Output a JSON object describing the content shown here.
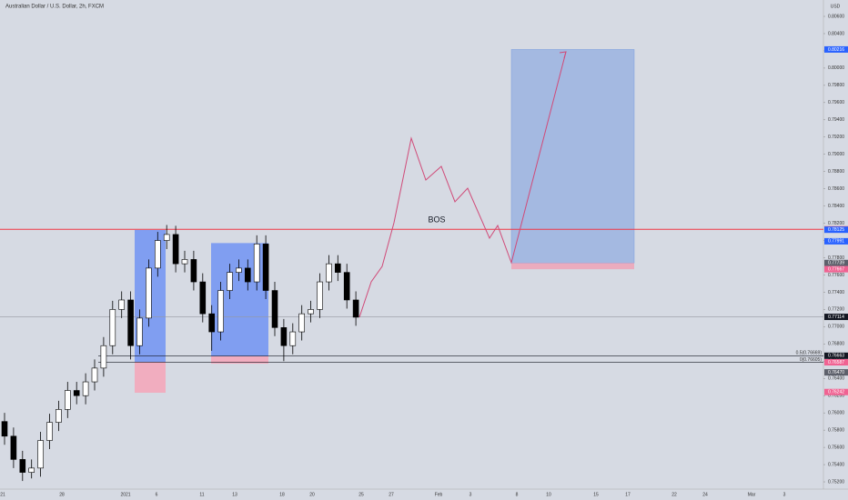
{
  "chart_data": {
    "type": "candlestick",
    "title": "Australian Dollar / U.S. Dollar, 2h, FXCM",
    "axis_unit": "USD",
    "open": [
      0.759,
      0.7573,
      0.7546,
      0.7531,
      0.7536,
      0.7568,
      0.7589,
      0.7604,
      0.7626,
      0.762,
      0.7636,
      0.7652,
      0.7678,
      0.772,
      0.7731,
      0.7678,
      0.771,
      0.7768,
      0.78,
      0.7807,
      0.7773,
      0.7778,
      0.7752,
      0.7715,
      0.7694,
      0.7742,
      0.7763,
      0.7768,
      0.7752,
      0.7796,
      0.7742,
      0.7699,
      0.7678,
      0.7694,
      0.7715,
      0.772,
      0.7752,
      0.7773,
      0.7763,
      0.7731
    ],
    "high": [
      0.76,
      0.7583,
      0.7556,
      0.7546,
      0.7578,
      0.7599,
      0.7614,
      0.7636,
      0.7636,
      0.7646,
      0.7662,
      0.7688,
      0.773,
      0.7741,
      0.7741,
      0.772,
      0.7778,
      0.781,
      0.7818,
      0.7817,
      0.7788,
      0.7788,
      0.7762,
      0.7725,
      0.7752,
      0.7773,
      0.7778,
      0.7778,
      0.7806,
      0.7806,
      0.7752,
      0.7709,
      0.7704,
      0.7725,
      0.773,
      0.7762,
      0.7783,
      0.7783,
      0.7773,
      0.7741
    ],
    "low": [
      0.7563,
      0.7536,
      0.7521,
      0.7524,
      0.7526,
      0.7558,
      0.7579,
      0.7594,
      0.761,
      0.761,
      0.7626,
      0.7642,
      0.7668,
      0.771,
      0.7662,
      0.7668,
      0.77,
      0.7758,
      0.779,
      0.7763,
      0.7763,
      0.7742,
      0.7705,
      0.7672,
      0.7684,
      0.7732,
      0.7753,
      0.7742,
      0.7742,
      0.7732,
      0.7689,
      0.766,
      0.7668,
      0.7684,
      0.7705,
      0.771,
      0.7742,
      0.7753,
      0.7721,
      0.7701
    ],
    "close": [
      0.7573,
      0.7546,
      0.7531,
      0.7536,
      0.7568,
      0.7589,
      0.7604,
      0.7626,
      0.762,
      0.7636,
      0.7652,
      0.7678,
      0.772,
      0.7731,
      0.7678,
      0.771,
      0.7768,
      0.78,
      0.7807,
      0.7773,
      0.7778,
      0.7752,
      0.7715,
      0.7694,
      0.7742,
      0.7763,
      0.7768,
      0.7752,
      0.7796,
      0.7742,
      0.7699,
      0.7678,
      0.7694,
      0.7715,
      0.772,
      0.7752,
      0.7773,
      0.7763,
      0.7731,
      0.7711
    ],
    "ylim": [
      0.75116,
      0.8079
    ],
    "yticks": [
      {
        "value": 0.752,
        "label": "0.75200"
      },
      {
        "value": 0.754,
        "label": "0.75400"
      },
      {
        "value": 0.756,
        "label": "0.75600"
      },
      {
        "value": 0.758,
        "label": "0.75800"
      },
      {
        "value": 0.76,
        "label": "0.76000"
      },
      {
        "value": 0.762,
        "label": "0.76200"
      },
      {
        "value": 0.764,
        "label": "0.76400"
      },
      {
        "value": 0.766,
        "label": "0.76600"
      },
      {
        "value": 0.768,
        "label": "0.76800"
      },
      {
        "value": 0.77,
        "label": "0.77000"
      },
      {
        "value": 0.772,
        "label": "0.77200"
      },
      {
        "value": 0.774,
        "label": "0.77400"
      },
      {
        "value": 0.776,
        "label": "0.77600"
      },
      {
        "value": 0.778,
        "label": "0.77800"
      },
      {
        "value": 0.78,
        "label": "0.78000"
      },
      {
        "value": 0.782,
        "label": "0.78200"
      },
      {
        "value": 0.784,
        "label": "0.78400"
      },
      {
        "value": 0.786,
        "label": "0.78600"
      },
      {
        "value": 0.788,
        "label": "0.78800"
      },
      {
        "value": 0.79,
        "label": "0.79000"
      },
      {
        "value": 0.792,
        "label": "0.79200"
      },
      {
        "value": 0.794,
        "label": "0.79400"
      },
      {
        "value": 0.796,
        "label": "0.79600"
      },
      {
        "value": 0.798,
        "label": "0.79800"
      },
      {
        "value": 0.8,
        "label": "0.80000"
      },
      {
        "value": 0.802,
        "label": "0.80200"
      },
      {
        "value": 0.804,
        "label": "0.80400"
      },
      {
        "value": 0.806,
        "label": "0.80600"
      }
    ],
    "x_labels": [
      "21",
      "28",
      "2021",
      "6",
      "11",
      "13",
      "18",
      "20",
      "25",
      "27",
      "Feb",
      "3",
      "8",
      "10",
      "15",
      "17",
      "22",
      "24",
      "Mar",
      "3"
    ],
    "price_tags": [
      {
        "value": 0.80216,
        "color": "#2962ff"
      },
      {
        "value": 0.78129,
        "color": "#f23645"
      },
      {
        "value": 0.78125,
        "color": "#2962ff"
      },
      {
        "value": 0.77991,
        "color": "#2962ff"
      },
      {
        "value": 0.77739,
        "color": "#5d606b"
      },
      {
        "value": 0.77667,
        "color": "#f06292"
      },
      {
        "value": 0.77114,
        "color": "#131722"
      },
      {
        "value": 0.76663,
        "color": "#131722"
      },
      {
        "value": 0.76587,
        "color": "#f06292"
      },
      {
        "value": 0.7647,
        "label": "0.76470",
        "color": "#5d606b"
      },
      {
        "value": 0.76242,
        "color": "#f06292"
      }
    ],
    "hlines": [
      {
        "value": 0.78129,
        "color": "#f23645"
      },
      {
        "value": 0.77114,
        "color": "#9598a1"
      },
      {
        "value": 0.76663,
        "color": "#131722"
      },
      {
        "value": 0.76587,
        "color": "#131722"
      }
    ],
    "zones": [
      {
        "top": 0.78122,
        "bottom": 0.76592,
        "stop": 0.76234
      },
      {
        "top": 0.7797,
        "bottom": 0.76656,
        "stop": 0.76571
      }
    ],
    "position": {
      "target": 0.80216,
      "entry": 0.77739,
      "stop": 0.77667
    },
    "projection": [
      0.77109,
      0.77521,
      0.777,
      0.78206,
      0.79187,
      0.78702,
      0.7886,
      0.78449,
      0.78607,
      0.78027,
      0.78174,
      0.77742,
      0.80189
    ],
    "bos_label": "BOS",
    "fib_labels": [
      "0.5(0.76669)",
      "0(0.76605)"
    ]
  }
}
